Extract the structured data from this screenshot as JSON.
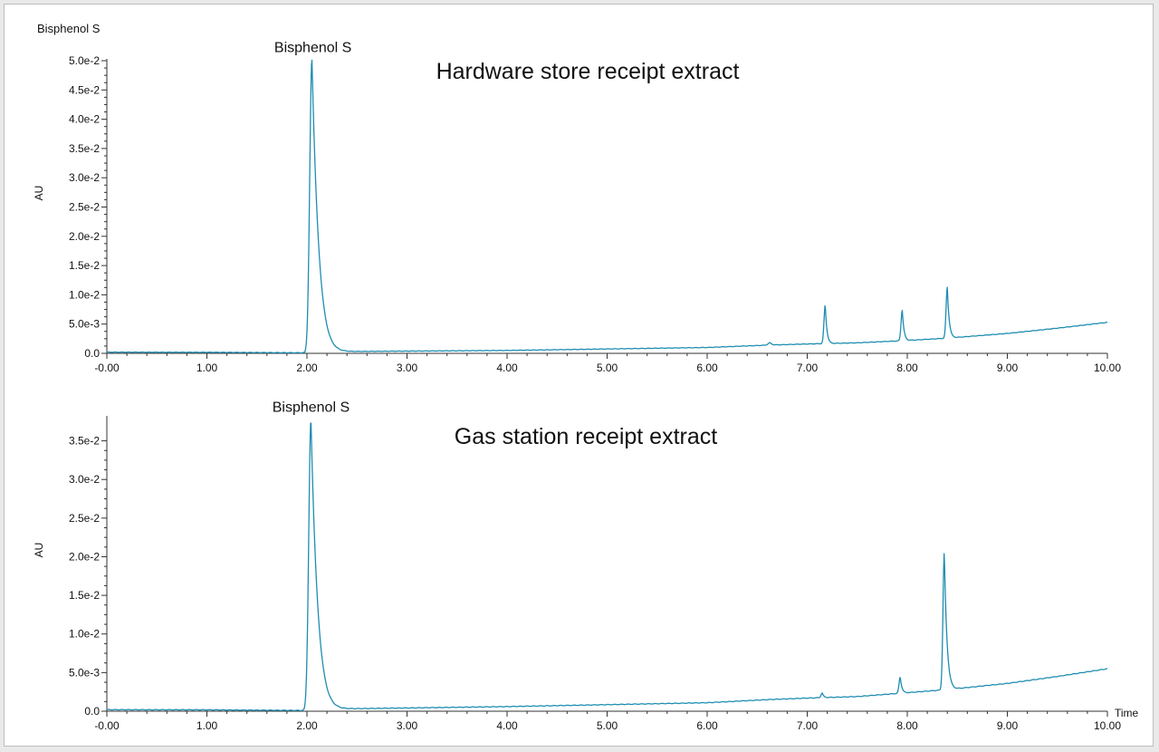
{
  "header_label": "Bisphenol S",
  "colors": {
    "trace": "#1e8db1",
    "axis": "#333333"
  },
  "chart_data": [
    {
      "type": "line",
      "title": "Hardware store receipt extract",
      "ylabel": "AU",
      "xlabel": "",
      "xlim": [
        0,
        10
      ],
      "ylim": [
        0,
        0.05
      ],
      "x_ticks": [
        "-0.00",
        "1.00",
        "2.00",
        "3.00",
        "4.00",
        "5.00",
        "6.00",
        "7.00",
        "8.00",
        "9.00",
        "10.00"
      ],
      "y_ticks": [
        "0.0",
        "5.0e-3",
        "1.0e-2",
        "1.5e-2",
        "2.0e-2",
        "2.5e-2",
        "3.0e-2",
        "3.5e-2",
        "4.0e-2",
        "4.5e-2",
        "5.0e-2"
      ],
      "annotations": [
        {
          "text": "Bisphenol S",
          "x": 2.06,
          "y": 0.0502
        }
      ],
      "baseline": [
        [
          0,
          0.0002
        ],
        [
          1,
          0.00018
        ],
        [
          1.95,
          0.0001
        ],
        [
          2.3,
          0.0003
        ],
        [
          4,
          0.0005
        ],
        [
          6,
          0.001
        ],
        [
          6.6,
          0.0014
        ],
        [
          7.0,
          0.0016
        ],
        [
          7.5,
          0.0018
        ],
        [
          8.0,
          0.0022
        ],
        [
          8.4,
          0.0026
        ],
        [
          9.0,
          0.0034
        ],
        [
          9.5,
          0.0043
        ],
        [
          10.0,
          0.0053
        ]
      ],
      "peaks": [
        {
          "x": 2.05,
          "height": 0.0502,
          "width": 0.022,
          "tail": 0.07
        },
        {
          "x": 7.18,
          "height": 0.0066,
          "width": 0.012,
          "tail": 0.018
        },
        {
          "x": 7.95,
          "height": 0.0052,
          "width": 0.012,
          "tail": 0.018
        },
        {
          "x": 8.4,
          "height": 0.0087,
          "width": 0.012,
          "tail": 0.02
        },
        {
          "x": 6.63,
          "height": 0.0004,
          "width": 0.02,
          "tail": 0.02
        }
      ],
      "series": [
        {
          "values": []
        }
      ]
    },
    {
      "type": "line",
      "title": "Gas station receipt extract",
      "ylabel": "AU",
      "xlabel": "Time",
      "xlim": [
        0,
        10
      ],
      "ylim": [
        0,
        0.038
      ],
      "x_ticks": [
        "-0.00",
        "1.00",
        "2.00",
        "3.00",
        "4.00",
        "5.00",
        "6.00",
        "7.00",
        "8.00",
        "9.00",
        "10.00"
      ],
      "y_ticks": [
        "0.0",
        "5.0e-3",
        "1.0e-2",
        "1.5e-2",
        "2.0e-2",
        "2.5e-2",
        "3.0e-2",
        "3.5e-2"
      ],
      "annotations": [
        {
          "text": "Bisphenol S",
          "x": 2.04,
          "y": 0.0378
        }
      ],
      "baseline": [
        [
          0,
          0.0002
        ],
        [
          1,
          0.00018
        ],
        [
          1.95,
          0.0001
        ],
        [
          2.3,
          0.0003
        ],
        [
          4,
          0.0006
        ],
        [
          6,
          0.0011
        ],
        [
          6.6,
          0.0015
        ],
        [
          7.0,
          0.0017
        ],
        [
          7.5,
          0.0019
        ],
        [
          8.0,
          0.0024
        ],
        [
          8.4,
          0.0028
        ],
        [
          9.0,
          0.0036
        ],
        [
          9.5,
          0.0045
        ],
        [
          10.0,
          0.0055
        ]
      ],
      "peaks": [
        {
          "x": 2.04,
          "height": 0.0376,
          "width": 0.022,
          "tail": 0.07
        },
        {
          "x": 7.15,
          "height": 0.0006,
          "width": 0.012,
          "tail": 0.015
        },
        {
          "x": 7.93,
          "height": 0.0021,
          "width": 0.012,
          "tail": 0.018
        },
        {
          "x": 8.37,
          "height": 0.0178,
          "width": 0.013,
          "tail": 0.028
        }
      ],
      "series": [
        {
          "values": []
        }
      ]
    }
  ]
}
